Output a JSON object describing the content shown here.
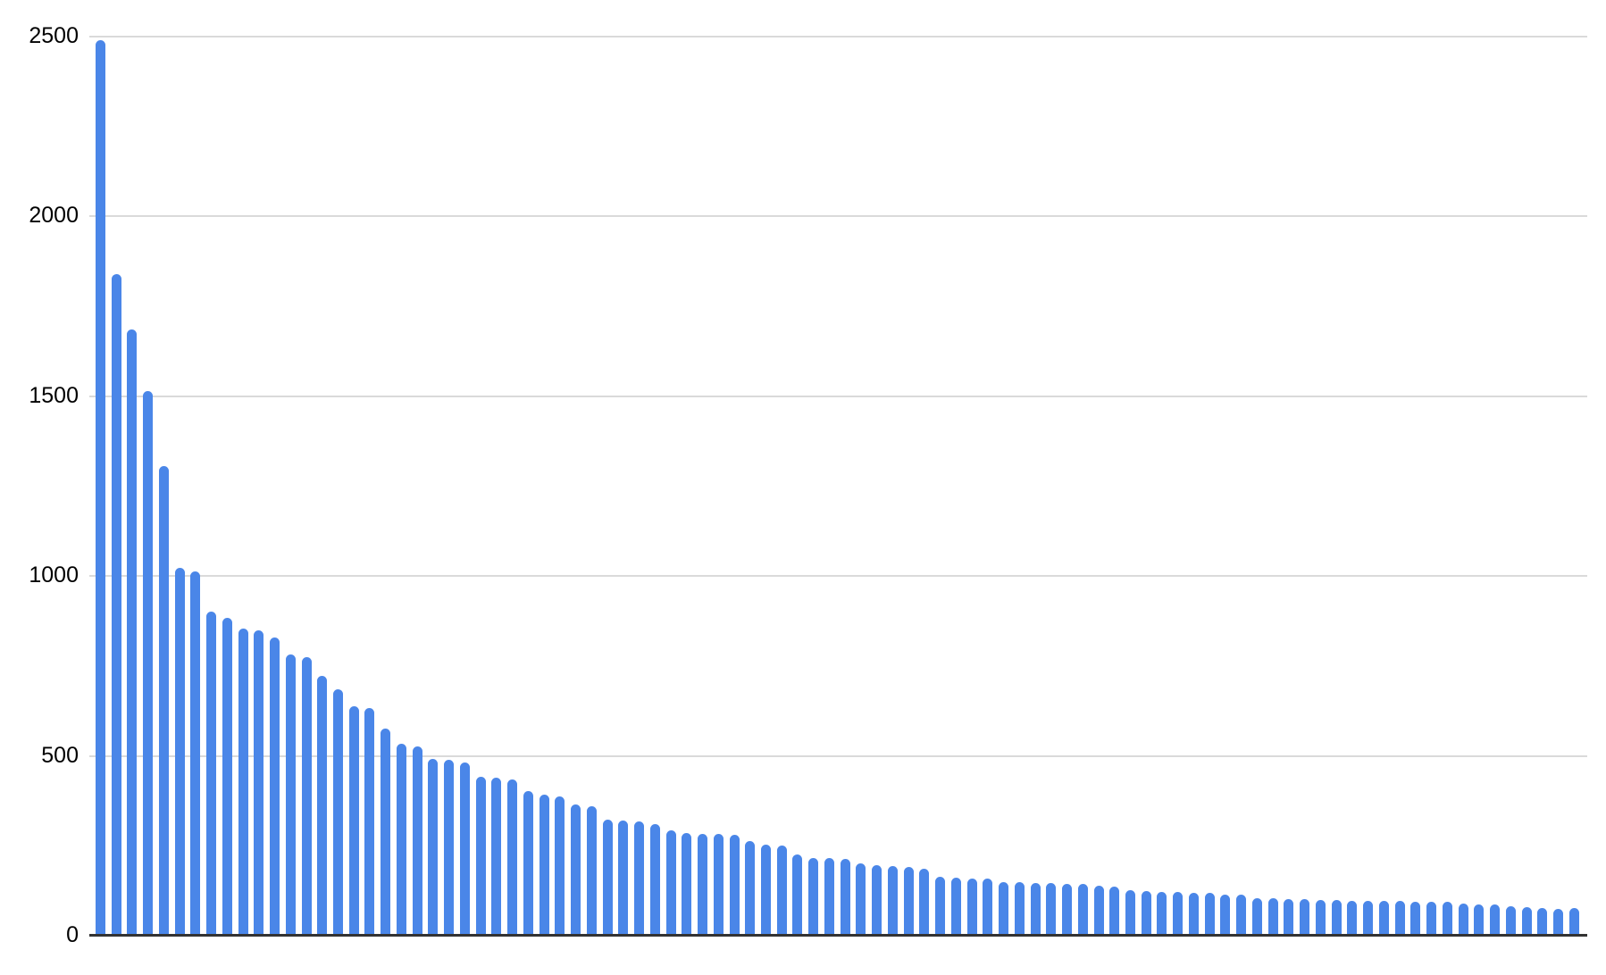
{
  "chart_data": {
    "type": "bar",
    "title": "",
    "xlabel": "",
    "ylabel": "",
    "categories": [],
    "x_axis_labels_visible": false,
    "legend": "none",
    "grid": true,
    "ylim": [
      0,
      2500
    ],
    "yticks": [
      0,
      500,
      1000,
      1500,
      2000,
      2500
    ],
    "ytick_labels": [
      "0",
      "500",
      "1000",
      "1500",
      "2000",
      "2500"
    ],
    "values": [
      2490,
      1840,
      1685,
      1515,
      1305,
      1022,
      1012,
      900,
      885,
      855,
      848,
      828,
      783,
      775,
      722,
      686,
      637,
      632,
      577,
      533,
      527,
      491,
      488,
      482,
      442,
      440,
      434,
      401,
      392,
      388,
      364,
      359,
      322,
      320,
      318,
      311,
      292,
      286,
      283,
      283,
      281,
      262,
      252,
      250,
      225,
      216,
      215,
      214,
      202,
      196,
      193,
      191,
      185,
      163,
      161,
      160,
      159,
      150,
      148,
      147,
      146,
      145,
      144,
      138,
      136,
      127,
      125,
      122,
      121,
      120,
      120,
      115,
      113,
      105,
      104,
      103,
      102,
      100,
      99,
      98,
      98,
      97,
      96,
      95,
      94,
      94,
      89,
      88,
      88,
      81,
      80,
      78,
      74,
      78
    ],
    "bar_count": 94,
    "colors": {
      "bar": "#4a86e8",
      "gridline": "#dadada",
      "axis_line": "#333333",
      "tick_label": "#000000",
      "background": "#ffffff"
    }
  }
}
